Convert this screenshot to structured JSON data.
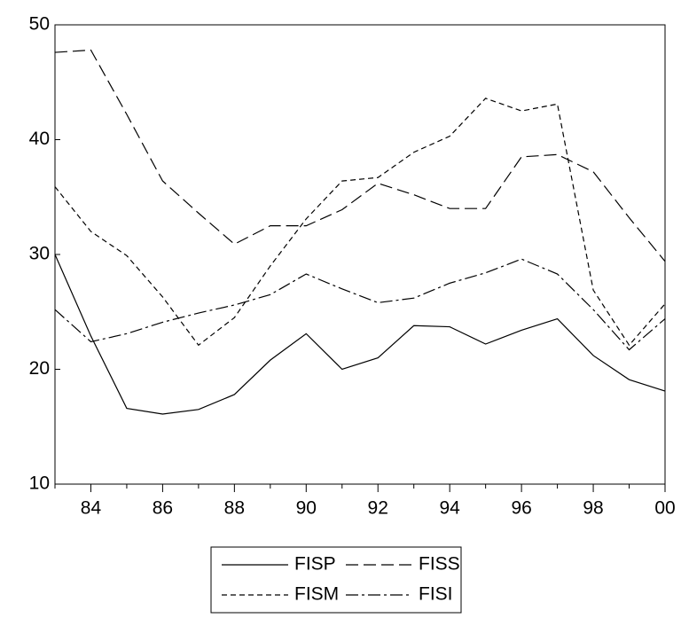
{
  "chart_data": {
    "type": "line",
    "categories": [
      null,
      "84",
      null,
      "86",
      null,
      "88",
      null,
      "90",
      null,
      "92",
      null,
      "94",
      null,
      "96",
      null,
      "98",
      null,
      "00"
    ],
    "series": [
      {
        "name": "FISP",
        "color": "#000000",
        "dash": "solid",
        "values": [
          30.0,
          22.9,
          16.6,
          16.1,
          16.5,
          17.8,
          20.8,
          23.1,
          20.0,
          21.0,
          23.8,
          23.7,
          22.2,
          23.4,
          24.4,
          21.2,
          19.1,
          18.1
        ]
      },
      {
        "name": "FISS",
        "color": "#000000",
        "dash": "long",
        "values": [
          47.6,
          47.8,
          42.2,
          36.4,
          33.6,
          30.9,
          32.5,
          32.5,
          33.9,
          36.2,
          35.2,
          34.0,
          34.0,
          38.5,
          38.7,
          37.2,
          33.2,
          29.4
        ]
      },
      {
        "name": "FISM",
        "color": "#000000",
        "dash": "short",
        "values": [
          35.9,
          32.0,
          29.9,
          26.3,
          22.1,
          24.5,
          29.0,
          33.1,
          36.4,
          36.7,
          38.9,
          40.3,
          43.6,
          42.5,
          43.1,
          26.9,
          22.1,
          25.7
        ]
      },
      {
        "name": "FISI",
        "color": "#000000",
        "dash": "dashdot",
        "values": [
          25.2,
          22.4,
          23.1,
          24.1,
          24.9,
          25.6,
          26.5,
          28.3,
          27.0,
          25.8,
          26.2,
          27.5,
          28.4,
          29.6,
          28.3,
          25.2,
          21.7,
          24.4
        ]
      }
    ],
    "ylim": [
      10,
      50
    ],
    "yticks": [
      10,
      20,
      30,
      40,
      50
    ],
    "grid": false,
    "legend": "bottom"
  }
}
